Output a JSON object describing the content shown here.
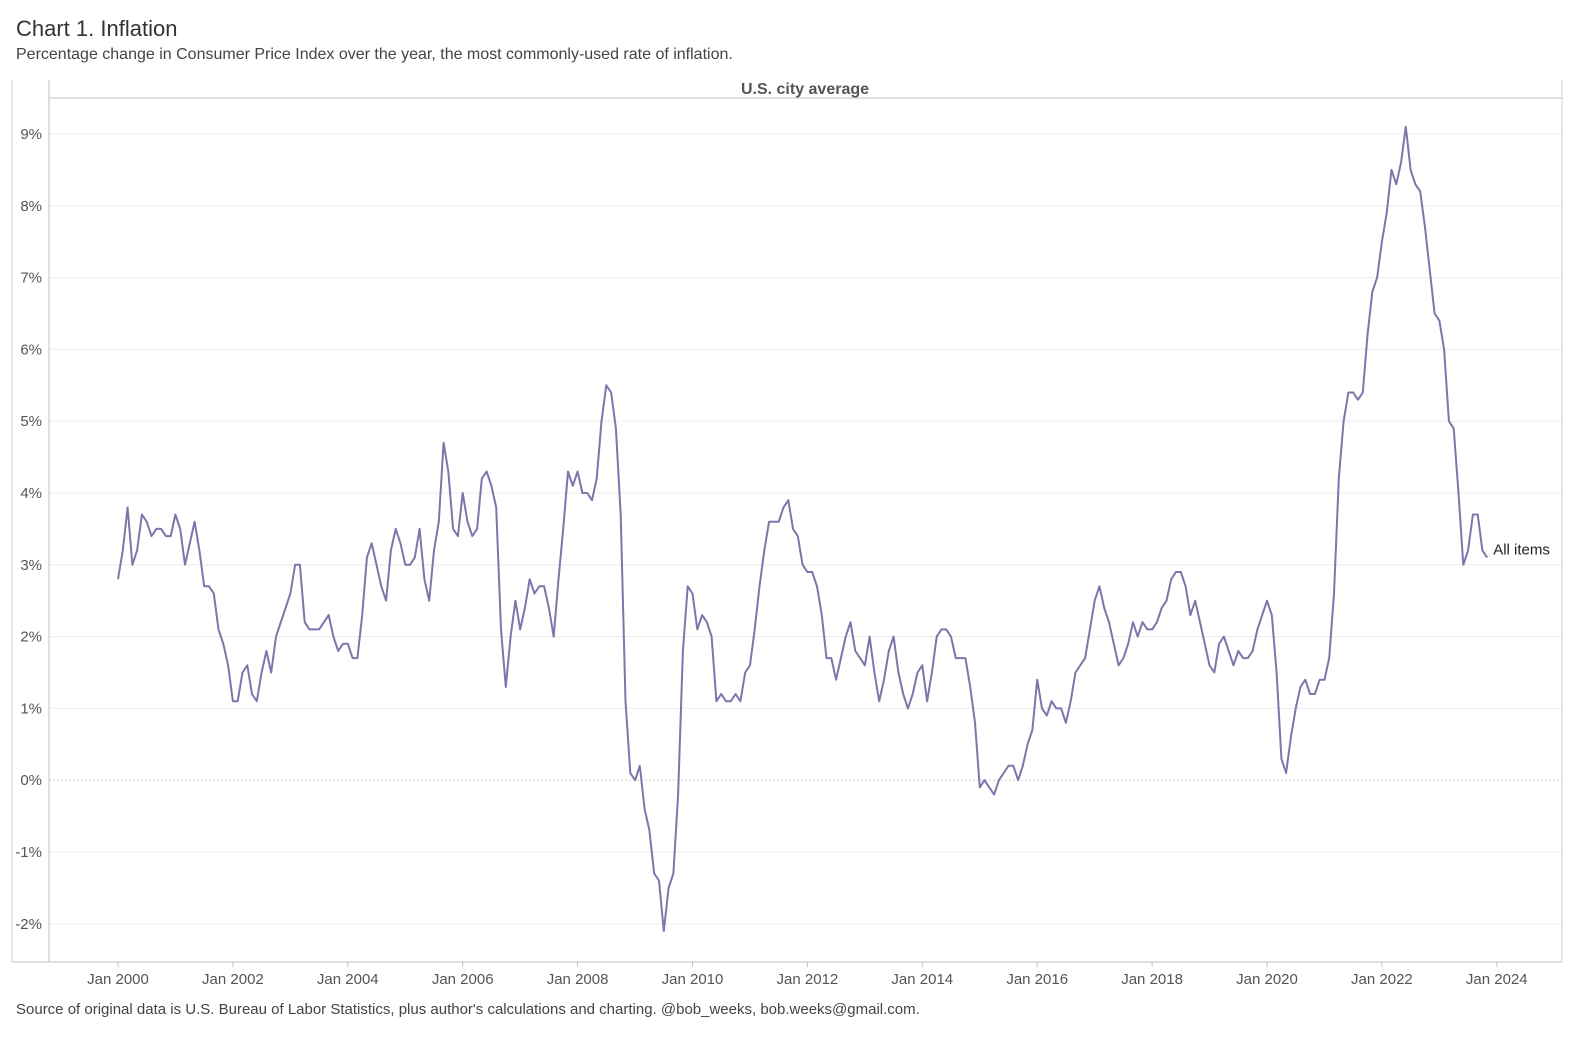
{
  "header": {
    "title": "Chart 1. Inflation",
    "subtitle": "Percentage change in Consumer Price Index over the year, the most commonly-used rate of inflation."
  },
  "footer": {
    "source": "Source of original data is U.S. Bureau of Labor Statistics, plus author's calculations and charting. @bob_weeks, bob.weeks@gmail.com."
  },
  "colors": {
    "line": "#7b76ab",
    "grid": "#ececec",
    "axis": "#bfbfbf",
    "zero": "#cfcfcf"
  },
  "chart_data": {
    "type": "line",
    "title": "Chart 1. Inflation",
    "subtitle": "Percentage change in Consumer Price Index over the year, the most commonly-used rate of inflation.",
    "panel_title": "U.S. city average",
    "xlabel": "",
    "ylabel": "",
    "x_ticks": [
      "Jan 2000",
      "Jan 2002",
      "Jan 2004",
      "Jan 2006",
      "Jan 2008",
      "Jan 2010",
      "Jan 2012",
      "Jan 2014",
      "Jan 2016",
      "Jan 2018",
      "Jan 2020",
      "Jan 2022",
      "Jan 2024"
    ],
    "y_ticks": [
      "-2%",
      "-1%",
      "0%",
      "1%",
      "2%",
      "3%",
      "4%",
      "5%",
      "6%",
      "7%",
      "8%",
      "9%"
    ],
    "ylim": [
      -2.5,
      9.5
    ],
    "xlim": [
      "1998-10",
      "2024-12"
    ],
    "grid": true,
    "series": [
      {
        "name": "All items",
        "points": [
          [
            "2000-01",
            2.8
          ],
          [
            "2000-02",
            3.2
          ],
          [
            "2000-03",
            3.8
          ],
          [
            "2000-04",
            3.0
          ],
          [
            "2000-05",
            3.2
          ],
          [
            "2000-06",
            3.7
          ],
          [
            "2000-07",
            3.6
          ],
          [
            "2000-08",
            3.4
          ],
          [
            "2000-09",
            3.5
          ],
          [
            "2000-10",
            3.5
          ],
          [
            "2000-11",
            3.4
          ],
          [
            "2000-12",
            3.4
          ],
          [
            "2001-01",
            3.7
          ],
          [
            "2001-02",
            3.5
          ],
          [
            "2001-03",
            3.0
          ],
          [
            "2001-04",
            3.3
          ],
          [
            "2001-05",
            3.6
          ],
          [
            "2001-06",
            3.2
          ],
          [
            "2001-07",
            2.7
          ],
          [
            "2001-08",
            2.7
          ],
          [
            "2001-09",
            2.6
          ],
          [
            "2001-10",
            2.1
          ],
          [
            "2001-11",
            1.9
          ],
          [
            "2001-12",
            1.6
          ],
          [
            "2002-01",
            1.1
          ],
          [
            "2002-02",
            1.1
          ],
          [
            "2002-03",
            1.5
          ],
          [
            "2002-04",
            1.6
          ],
          [
            "2002-05",
            1.2
          ],
          [
            "2002-06",
            1.1
          ],
          [
            "2002-07",
            1.5
          ],
          [
            "2002-08",
            1.8
          ],
          [
            "2002-09",
            1.5
          ],
          [
            "2002-10",
            2.0
          ],
          [
            "2002-11",
            2.2
          ],
          [
            "2002-12",
            2.4
          ],
          [
            "2003-01",
            2.6
          ],
          [
            "2003-02",
            3.0
          ],
          [
            "2003-03",
            3.0
          ],
          [
            "2003-04",
            2.2
          ],
          [
            "2003-05",
            2.1
          ],
          [
            "2003-06",
            2.1
          ],
          [
            "2003-07",
            2.1
          ],
          [
            "2003-08",
            2.2
          ],
          [
            "2003-09",
            2.3
          ],
          [
            "2003-10",
            2.0
          ],
          [
            "2003-11",
            1.8
          ],
          [
            "2003-12",
            1.9
          ],
          [
            "2004-01",
            1.9
          ],
          [
            "2004-02",
            1.7
          ],
          [
            "2004-03",
            1.7
          ],
          [
            "2004-04",
            2.3
          ],
          [
            "2004-05",
            3.1
          ],
          [
            "2004-06",
            3.3
          ],
          [
            "2004-07",
            3.0
          ],
          [
            "2004-08",
            2.7
          ],
          [
            "2004-09",
            2.5
          ],
          [
            "2004-10",
            3.2
          ],
          [
            "2004-11",
            3.5
          ],
          [
            "2004-12",
            3.3
          ],
          [
            "2005-01",
            3.0
          ],
          [
            "2005-02",
            3.0
          ],
          [
            "2005-03",
            3.1
          ],
          [
            "2005-04",
            3.5
          ],
          [
            "2005-05",
            2.8
          ],
          [
            "2005-06",
            2.5
          ],
          [
            "2005-07",
            3.2
          ],
          [
            "2005-08",
            3.6
          ],
          [
            "2005-09",
            4.7
          ],
          [
            "2005-10",
            4.3
          ],
          [
            "2005-11",
            3.5
          ],
          [
            "2005-12",
            3.4
          ],
          [
            "2006-01",
            4.0
          ],
          [
            "2006-02",
            3.6
          ],
          [
            "2006-03",
            3.4
          ],
          [
            "2006-04",
            3.5
          ],
          [
            "2006-05",
            4.2
          ],
          [
            "2006-06",
            4.3
          ],
          [
            "2006-07",
            4.1
          ],
          [
            "2006-08",
            3.8
          ],
          [
            "2006-09",
            2.1
          ],
          [
            "2006-10",
            1.3
          ],
          [
            "2006-11",
            2.0
          ],
          [
            "2006-12",
            2.5
          ],
          [
            "2007-01",
            2.1
          ],
          [
            "2007-02",
            2.4
          ],
          [
            "2007-03",
            2.8
          ],
          [
            "2007-04",
            2.6
          ],
          [
            "2007-05",
            2.7
          ],
          [
            "2007-06",
            2.7
          ],
          [
            "2007-07",
            2.4
          ],
          [
            "2007-08",
            2.0
          ],
          [
            "2007-09",
            2.8
          ],
          [
            "2007-10",
            3.5
          ],
          [
            "2007-11",
            4.3
          ],
          [
            "2007-12",
            4.1
          ],
          [
            "2008-01",
            4.3
          ],
          [
            "2008-02",
            4.0
          ],
          [
            "2008-03",
            4.0
          ],
          [
            "2008-04",
            3.9
          ],
          [
            "2008-05",
            4.2
          ],
          [
            "2008-06",
            5.0
          ],
          [
            "2008-07",
            5.5
          ],
          [
            "2008-08",
            5.4
          ],
          [
            "2008-09",
            4.9
          ],
          [
            "2008-10",
            3.7
          ],
          [
            "2008-11",
            1.1
          ],
          [
            "2008-12",
            0.1
          ],
          [
            "2009-01",
            0.0
          ],
          [
            "2009-02",
            0.2
          ],
          [
            "2009-03",
            -0.4
          ],
          [
            "2009-04",
            -0.7
          ],
          [
            "2009-05",
            -1.3
          ],
          [
            "2009-06",
            -1.4
          ],
          [
            "2009-07",
            -2.1
          ],
          [
            "2009-08",
            -1.5
          ],
          [
            "2009-09",
            -1.3
          ],
          [
            "2009-10",
            -0.2
          ],
          [
            "2009-11",
            1.8
          ],
          [
            "2009-12",
            2.7
          ],
          [
            "2010-01",
            2.6
          ],
          [
            "2010-02",
            2.1
          ],
          [
            "2010-03",
            2.3
          ],
          [
            "2010-04",
            2.2
          ],
          [
            "2010-05",
            2.0
          ],
          [
            "2010-06",
            1.1
          ],
          [
            "2010-07",
            1.2
          ],
          [
            "2010-08",
            1.1
          ],
          [
            "2010-09",
            1.1
          ],
          [
            "2010-10",
            1.2
          ],
          [
            "2010-11",
            1.1
          ],
          [
            "2010-12",
            1.5
          ],
          [
            "2011-01",
            1.6
          ],
          [
            "2011-02",
            2.1
          ],
          [
            "2011-03",
            2.7
          ],
          [
            "2011-04",
            3.2
          ],
          [
            "2011-05",
            3.6
          ],
          [
            "2011-06",
            3.6
          ],
          [
            "2011-07",
            3.6
          ],
          [
            "2011-08",
            3.8
          ],
          [
            "2011-09",
            3.9
          ],
          [
            "2011-10",
            3.5
          ],
          [
            "2011-11",
            3.4
          ],
          [
            "2011-12",
            3.0
          ],
          [
            "2012-01",
            2.9
          ],
          [
            "2012-02",
            2.9
          ],
          [
            "2012-03",
            2.7
          ],
          [
            "2012-04",
            2.3
          ],
          [
            "2012-05",
            1.7
          ],
          [
            "2012-06",
            1.7
          ],
          [
            "2012-07",
            1.4
          ],
          [
            "2012-08",
            1.7
          ],
          [
            "2012-09",
            2.0
          ],
          [
            "2012-10",
            2.2
          ],
          [
            "2012-11",
            1.8
          ],
          [
            "2012-12",
            1.7
          ],
          [
            "2013-01",
            1.6
          ],
          [
            "2013-02",
            2.0
          ],
          [
            "2013-03",
            1.5
          ],
          [
            "2013-04",
            1.1
          ],
          [
            "2013-05",
            1.4
          ],
          [
            "2013-06",
            1.8
          ],
          [
            "2013-07",
            2.0
          ],
          [
            "2013-08",
            1.5
          ],
          [
            "2013-09",
            1.2
          ],
          [
            "2013-10",
            1.0
          ],
          [
            "2013-11",
            1.2
          ],
          [
            "2013-12",
            1.5
          ],
          [
            "2014-01",
            1.6
          ],
          [
            "2014-02",
            1.1
          ],
          [
            "2014-03",
            1.5
          ],
          [
            "2014-04",
            2.0
          ],
          [
            "2014-05",
            2.1
          ],
          [
            "2014-06",
            2.1
          ],
          [
            "2014-07",
            2.0
          ],
          [
            "2014-08",
            1.7
          ],
          [
            "2014-09",
            1.7
          ],
          [
            "2014-10",
            1.7
          ],
          [
            "2014-11",
            1.3
          ],
          [
            "2014-12",
            0.8
          ],
          [
            "2015-01",
            -0.1
          ],
          [
            "2015-02",
            0.0
          ],
          [
            "2015-03",
            -0.1
          ],
          [
            "2015-04",
            -0.2
          ],
          [
            "2015-05",
            0.0
          ],
          [
            "2015-06",
            0.1
          ],
          [
            "2015-07",
            0.2
          ],
          [
            "2015-08",
            0.2
          ],
          [
            "2015-09",
            0.0
          ],
          [
            "2015-10",
            0.2
          ],
          [
            "2015-11",
            0.5
          ],
          [
            "2015-12",
            0.7
          ],
          [
            "2016-01",
            1.4
          ],
          [
            "2016-02",
            1.0
          ],
          [
            "2016-03",
            0.9
          ],
          [
            "2016-04",
            1.1
          ],
          [
            "2016-05",
            1.0
          ],
          [
            "2016-06",
            1.0
          ],
          [
            "2016-07",
            0.8
          ],
          [
            "2016-08",
            1.1
          ],
          [
            "2016-09",
            1.5
          ],
          [
            "2016-10",
            1.6
          ],
          [
            "2016-11",
            1.7
          ],
          [
            "2016-12",
            2.1
          ],
          [
            "2017-01",
            2.5
          ],
          [
            "2017-02",
            2.7
          ],
          [
            "2017-03",
            2.4
          ],
          [
            "2017-04",
            2.2
          ],
          [
            "2017-05",
            1.9
          ],
          [
            "2017-06",
            1.6
          ],
          [
            "2017-07",
            1.7
          ],
          [
            "2017-08",
            1.9
          ],
          [
            "2017-09",
            2.2
          ],
          [
            "2017-10",
            2.0
          ],
          [
            "2017-11",
            2.2
          ],
          [
            "2017-12",
            2.1
          ],
          [
            "2018-01",
            2.1
          ],
          [
            "2018-02",
            2.2
          ],
          [
            "2018-03",
            2.4
          ],
          [
            "2018-04",
            2.5
          ],
          [
            "2018-05",
            2.8
          ],
          [
            "2018-06",
            2.9
          ],
          [
            "2018-07",
            2.9
          ],
          [
            "2018-08",
            2.7
          ],
          [
            "2018-09",
            2.3
          ],
          [
            "2018-10",
            2.5
          ],
          [
            "2018-11",
            2.2
          ],
          [
            "2018-12",
            1.9
          ],
          [
            "2019-01",
            1.6
          ],
          [
            "2019-02",
            1.5
          ],
          [
            "2019-03",
            1.9
          ],
          [
            "2019-04",
            2.0
          ],
          [
            "2019-05",
            1.8
          ],
          [
            "2019-06",
            1.6
          ],
          [
            "2019-07",
            1.8
          ],
          [
            "2019-08",
            1.7
          ],
          [
            "2019-09",
            1.7
          ],
          [
            "2019-10",
            1.8
          ],
          [
            "2019-11",
            2.1
          ],
          [
            "2019-12",
            2.3
          ],
          [
            "2020-01",
            2.5
          ],
          [
            "2020-02",
            2.3
          ],
          [
            "2020-03",
            1.5
          ],
          [
            "2020-04",
            0.3
          ],
          [
            "2020-05",
            0.1
          ],
          [
            "2020-06",
            0.6
          ],
          [
            "2020-07",
            1.0
          ],
          [
            "2020-08",
            1.3
          ],
          [
            "2020-09",
            1.4
          ],
          [
            "2020-10",
            1.2
          ],
          [
            "2020-11",
            1.2
          ],
          [
            "2020-12",
            1.4
          ],
          [
            "2021-01",
            1.4
          ],
          [
            "2021-02",
            1.7
          ],
          [
            "2021-03",
            2.6
          ],
          [
            "2021-04",
            4.2
          ],
          [
            "2021-05",
            5.0
          ],
          [
            "2021-06",
            5.4
          ],
          [
            "2021-07",
            5.4
          ],
          [
            "2021-08",
            5.3
          ],
          [
            "2021-09",
            5.4
          ],
          [
            "2021-10",
            6.2
          ],
          [
            "2021-11",
            6.8
          ],
          [
            "2021-12",
            7.0
          ],
          [
            "2022-01",
            7.5
          ],
          [
            "2022-02",
            7.9
          ],
          [
            "2022-03",
            8.5
          ],
          [
            "2022-04",
            8.3
          ],
          [
            "2022-05",
            8.6
          ],
          [
            "2022-06",
            9.1
          ],
          [
            "2022-07",
            8.5
          ],
          [
            "2022-08",
            8.3
          ],
          [
            "2022-09",
            8.2
          ],
          [
            "2022-10",
            7.7
          ],
          [
            "2022-11",
            7.1
          ],
          [
            "2022-12",
            6.5
          ],
          [
            "2023-01",
            6.4
          ],
          [
            "2023-02",
            6.0
          ],
          [
            "2023-03",
            5.0
          ],
          [
            "2023-04",
            4.9
          ],
          [
            "2023-05",
            4.0
          ],
          [
            "2023-06",
            3.0
          ],
          [
            "2023-07",
            3.2
          ],
          [
            "2023-08",
            3.7
          ],
          [
            "2023-09",
            3.7
          ],
          [
            "2023-10",
            3.2
          ],
          [
            "2023-11",
            3.1
          ]
        ]
      }
    ]
  }
}
